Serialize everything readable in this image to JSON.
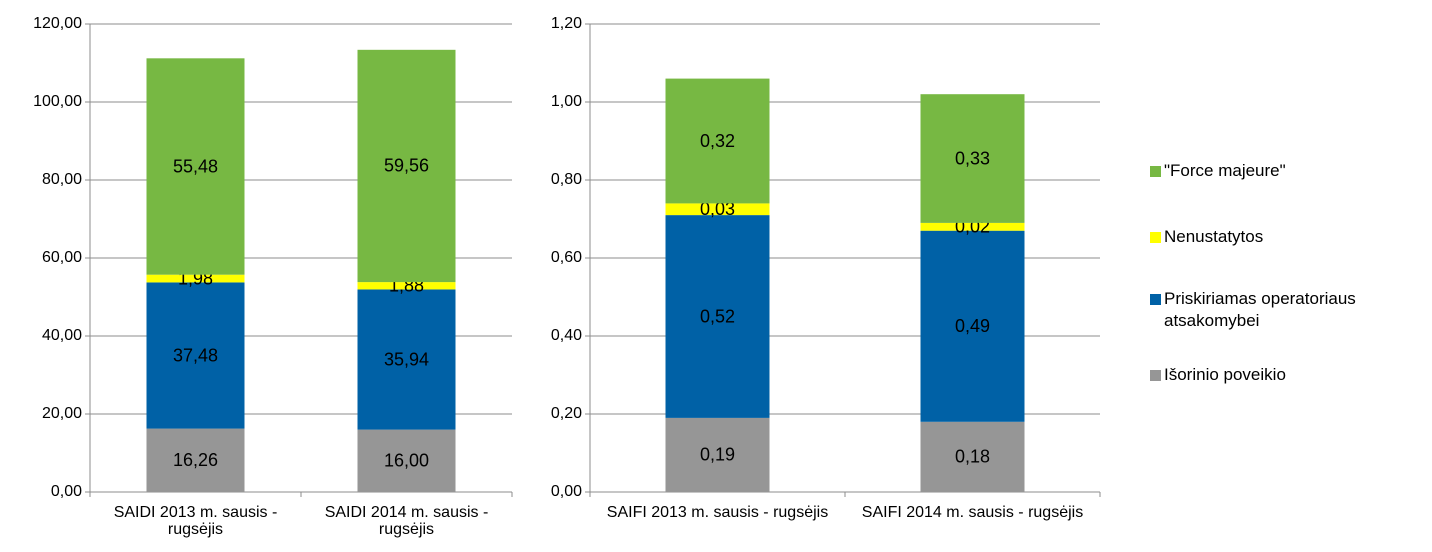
{
  "chart_data": [
    {
      "type": "stacked-bar",
      "categories": [
        "SAIDI 2013 m. sausis - rugsėjis",
        "SAIDI 2014 m. sausis - rugsėjis"
      ],
      "series": [
        {
          "color": "#969696",
          "values": [
            16.26,
            16.0
          ],
          "value_labels": [
            "16,26",
            "16,00"
          ]
        },
        {
          "color": "#0061a6",
          "values": [
            37.48,
            35.94
          ],
          "value_labels": [
            "37,48",
            "35,94"
          ]
        },
        {
          "color": "#ffff00",
          "values": [
            1.98,
            1.88
          ],
          "value_labels": [
            "1,98",
            "1,88"
          ]
        },
        {
          "color": "#77b843",
          "values": [
            55.48,
            59.56
          ],
          "value_labels": [
            "55,48",
            "59,56"
          ]
        }
      ],
      "ylim": [
        0,
        120
      ],
      "yticks": [
        {
          "value": 0,
          "label": "0,00"
        },
        {
          "value": 20,
          "label": "20,00"
        },
        {
          "value": 40,
          "label": "40,00"
        },
        {
          "value": 60,
          "label": "60,00"
        },
        {
          "value": 80,
          "label": "80,00"
        },
        {
          "value": 100,
          "label": "100,00"
        },
        {
          "value": 120,
          "label": "120,00"
        }
      ],
      "grid": true
    },
    {
      "type": "stacked-bar",
      "categories": [
        "SAIFI 2013 m. sausis - rugsėjis",
        "SAIFI 2014 m. sausis - rugsėjis"
      ],
      "series": [
        {
          "name": "Išorinio poveikio",
          "color": "#969696",
          "values": [
            0.19,
            0.18
          ],
          "value_labels": [
            "0,19",
            "0,18"
          ]
        },
        {
          "name": "Priskiriamas operatoriaus atsakomybei",
          "color": "#0061a6",
          "values": [
            0.52,
            0.49
          ],
          "value_labels": [
            "0,52",
            "0,49"
          ]
        },
        {
          "name": "Nenustatytos",
          "color": "#ffff00",
          "values": [
            0.03,
            0.02
          ],
          "value_labels": [
            "0,03",
            "0,02"
          ]
        },
        {
          "name": "\"Force majeure\"",
          "color": "#77b843",
          "values": [
            0.32,
            0.33
          ],
          "value_labels": [
            "0,32",
            "0,33"
          ]
        }
      ],
      "ylim": [
        0,
        1.2
      ],
      "yticks": [
        {
          "value": 0,
          "label": "0,00"
        },
        {
          "value": 0.2,
          "label": "0,20"
        },
        {
          "value": 0.4,
          "label": "0,40"
        },
        {
          "value": 0.6,
          "label": "0,60"
        },
        {
          "value": 0.8,
          "label": "0,80"
        },
        {
          "value": 1.0,
          "label": "1,00"
        },
        {
          "value": 1.2,
          "label": "1,20"
        }
      ],
      "grid": true,
      "legend": "right"
    }
  ]
}
